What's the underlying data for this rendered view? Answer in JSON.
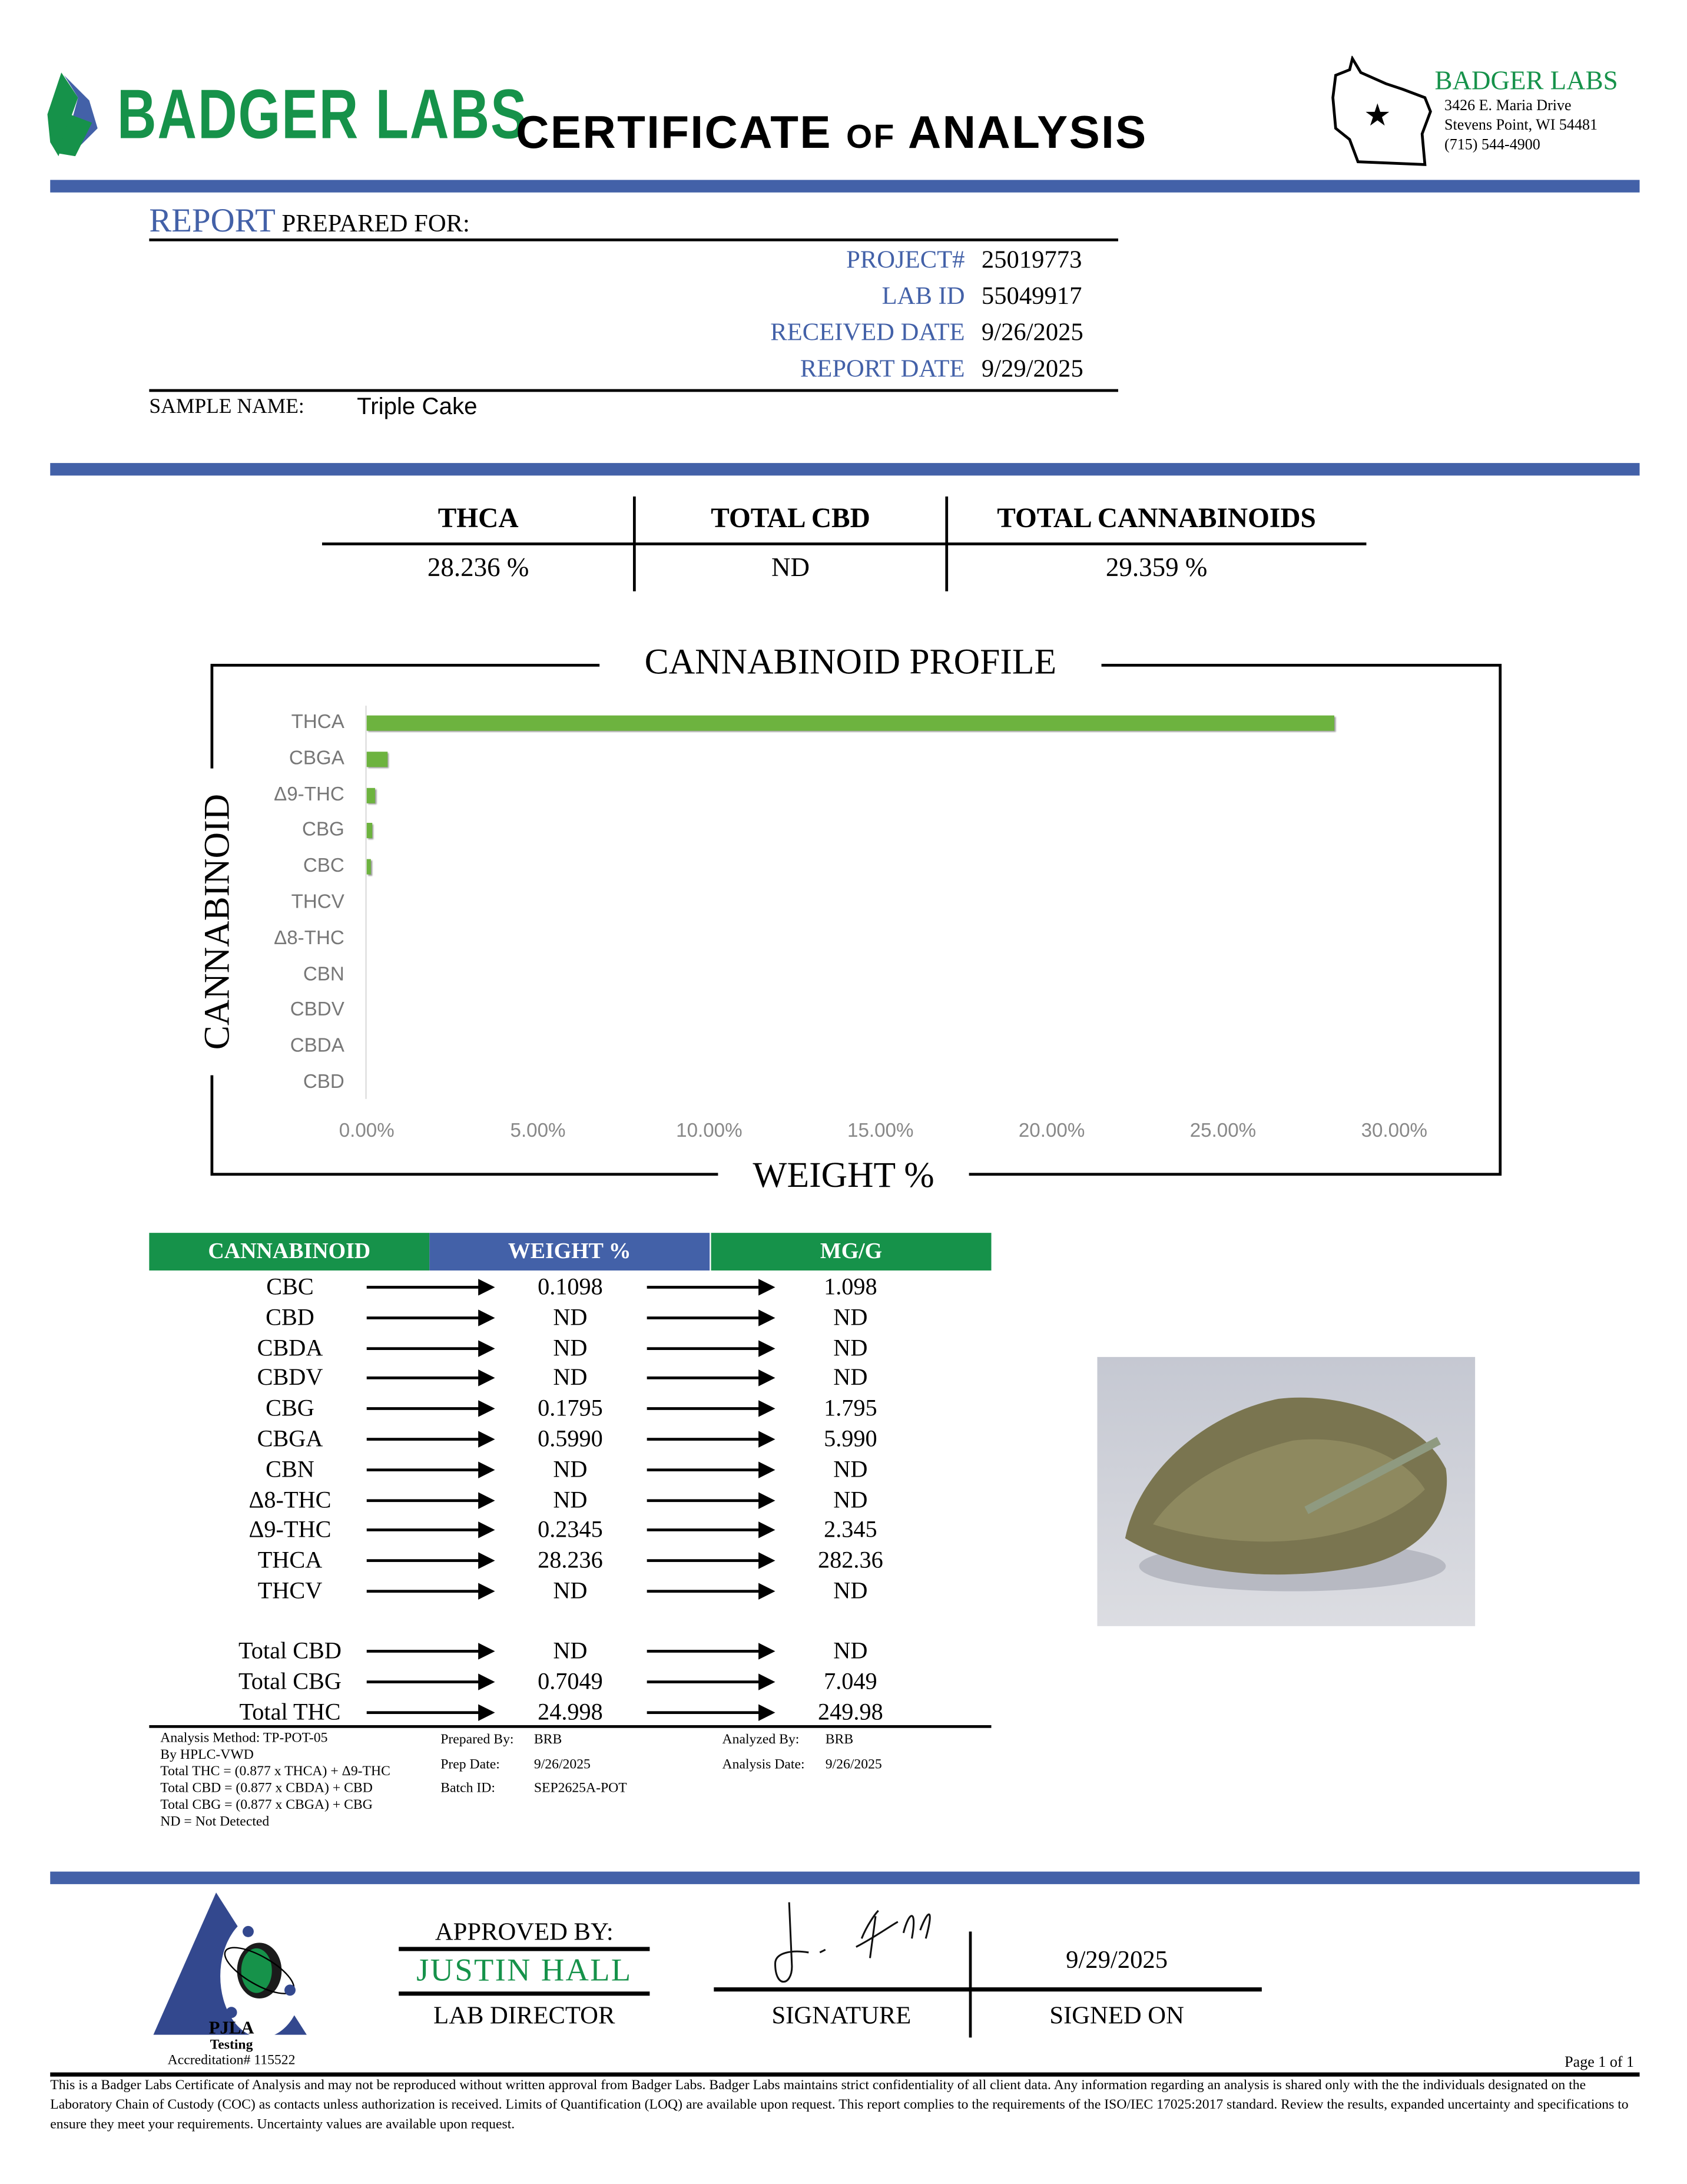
{
  "header": {
    "brand": "BADGER LABS",
    "title_part1": "CERTIFICATE ",
    "title_of": "OF",
    "title_part2": " ANALYSIS",
    "address_brand": "BADGER LABS",
    "address_line1": "3426 E. Maria Drive",
    "address_line2": "Stevens Point, WI 54481",
    "phone": "(715) 544-4900"
  },
  "colors": {
    "brand_blue": "#4361a8",
    "brand_green": "#16924a",
    "bar_green": "#6db33f"
  },
  "report": {
    "report_word": "REPORT",
    "prepared_for": " PREPARED FOR:",
    "fields": [
      {
        "label": "PROJECT#",
        "value": "25019773"
      },
      {
        "label": "LAB ID",
        "value": "55049917"
      },
      {
        "label": "RECEIVED DATE",
        "value": "9/26/2025"
      },
      {
        "label": "REPORT DATE",
        "value": "9/29/2025"
      }
    ],
    "sample_name_label": "SAMPLE NAME:",
    "sample_name": "Triple Cake"
  },
  "summary": [
    {
      "label": "THCA",
      "value": "28.236 %"
    },
    {
      "label": "TOTAL CBD",
      "value": "ND"
    },
    {
      "label": "TOTAL CANNABINOIDS",
      "value": "29.359 %"
    }
  ],
  "chart_data": {
    "type": "bar",
    "orientation": "horizontal",
    "title": "CANNABINOID PROFILE",
    "xlabel": "WEIGHT %",
    "ylabel": "CANNABINOID",
    "categories": [
      "THCA",
      "CBGA",
      "Δ9-THC",
      "CBG",
      "CBC",
      "THCV",
      "Δ8-THC",
      "CBN",
      "CBDV",
      "CBDA",
      "CBD"
    ],
    "values": [
      28.236,
      0.599,
      0.2345,
      0.1795,
      0.1098,
      0,
      0,
      0,
      0,
      0,
      0
    ],
    "xlim": [
      0,
      30
    ],
    "xticks": [
      "0.00%",
      "5.00%",
      "10.00%",
      "15.00%",
      "20.00%",
      "25.00%",
      "30.00%"
    ],
    "grid": false
  },
  "table": {
    "headers": [
      "CANNABINOID",
      "WEIGHT %",
      "MG/G"
    ],
    "rows": [
      [
        "CBC",
        "0.1098",
        "1.098"
      ],
      [
        "CBD",
        "ND",
        "ND"
      ],
      [
        "CBDA",
        "ND",
        "ND"
      ],
      [
        "CBDV",
        "ND",
        "ND"
      ],
      [
        "CBG",
        "0.1795",
        "1.795"
      ],
      [
        "CBGA",
        "0.5990",
        "5.990"
      ],
      [
        "CBN",
        "ND",
        "ND"
      ],
      [
        "Δ8-THC",
        "ND",
        "ND"
      ],
      [
        "Δ9-THC",
        "0.2345",
        "2.345"
      ],
      [
        "THCA",
        "28.236",
        "282.36"
      ],
      [
        "THCV",
        "ND",
        "ND"
      ]
    ],
    "totals": [
      [
        "Total CBD",
        "ND",
        "ND"
      ],
      [
        "Total CBG",
        "0.7049",
        "7.049"
      ],
      [
        "Total THC",
        "24.998",
        "249.98"
      ]
    ]
  },
  "notes": {
    "method": [
      "Analysis Method: TP-POT-05",
      "By HPLC-VWD",
      "Total THC = (0.877 x  THCA) + Δ9-THC",
      "Total CBD = (0.877 x  CBDA) + CBD",
      "Total CBG = (0.877 x  CBGA) + CBG",
      "ND = Not Detected"
    ],
    "prepared_by_label": "Prepared By:",
    "prepared_by": "BRB",
    "prep_date_label": "Prep Date:",
    "prep_date": "9/26/2025",
    "batch_label": "Batch ID:",
    "batch": "SEP2625A-POT",
    "analyzed_by_label": "Analyzed By:",
    "analyzed_by": "BRB",
    "analysis_date_label": "Analysis Date:",
    "analysis_date": "9/26/2025"
  },
  "footer": {
    "pjla": "PJLA",
    "testing": "Testing",
    "accreditation": "Accreditation# 115522",
    "approved_by": "APPROVED BY:",
    "approver": "JUSTIN HALL",
    "approver_title": "LAB DIRECTOR",
    "signature_label": "SIGNATURE",
    "signed_date": "9/29/2025",
    "signed_on_label": "SIGNED ON",
    "signature_text": "J Hall",
    "page": "Page 1 of 1",
    "disclaimer": "This is a Badger Labs Certificate of Analysis and may not be reproduced without written approval from Badger Labs. Badger Labs maintains strict confidentiality of all client data. Any information regarding an analysis is shared only with the the individuals designated on the Laboratory Chain of Custody (COC) as contacts unless authorization is received. Limits of Quantification (LOQ) are available upon request. This report complies to the requirements of the ISO/IEC 17025:2017 standard. Review the results, expanded uncertainty and specifications to ensure they meet your requirements. Uncertainty values are available upon request."
  }
}
